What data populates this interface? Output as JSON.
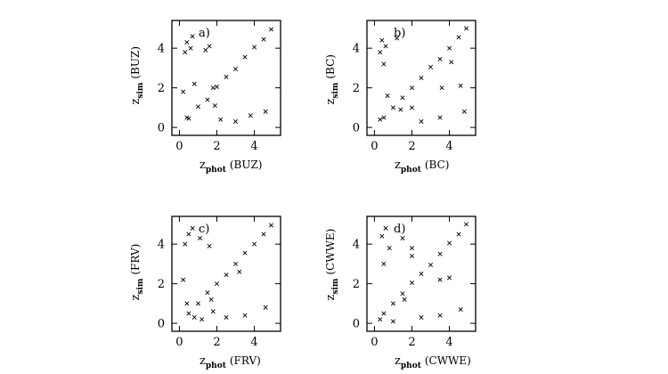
{
  "chart_data": [
    {
      "type": "scatter",
      "panel_label": "a)",
      "xlabel": {
        "main": "z",
        "sub": "phot",
        "code": "(BUZ)"
      },
      "ylabel": {
        "main": "z",
        "sub": "sim",
        "code": "(BUZ)"
      },
      "xlim": [
        -0.4,
        5.4
      ],
      "ylim": [
        -0.4,
        5.4
      ],
      "xticks": [
        0,
        2,
        4
      ],
      "yticks": [
        0,
        2,
        4
      ],
      "marker": "x",
      "series": [
        {
          "values": [
            [
              0.5,
              0.45
            ],
            [
              1.0,
              1.05
            ],
            [
              1.5,
              1.4
            ],
            [
              2.0,
              2.05
            ],
            [
              2.5,
              2.55
            ],
            [
              3.0,
              2.95
            ],
            [
              3.5,
              3.55
            ],
            [
              4.0,
              4.05
            ],
            [
              4.5,
              4.45
            ],
            [
              4.9,
              4.95
            ],
            [
              0.3,
              3.8
            ],
            [
              0.4,
              4.3
            ],
            [
              0.6,
              4.0
            ],
            [
              0.7,
              4.6
            ],
            [
              1.4,
              3.9
            ],
            [
              1.6,
              4.1
            ],
            [
              1.8,
              2.0
            ],
            [
              0.2,
              1.8
            ],
            [
              0.8,
              2.2
            ],
            [
              2.2,
              0.4
            ],
            [
              3.0,
              0.3
            ],
            [
              3.8,
              0.6
            ],
            [
              4.6,
              0.8
            ],
            [
              1.9,
              1.1
            ],
            [
              0.4,
              0.5
            ]
          ]
        }
      ]
    },
    {
      "type": "scatter",
      "panel_label": "b)",
      "xlabel": {
        "main": "z",
        "sub": "phot",
        "code": "(BC)"
      },
      "ylabel": {
        "main": "z",
        "sub": "sim",
        "code": "(BC)"
      },
      "xlim": [
        -0.4,
        5.4
      ],
      "ylim": [
        -0.4,
        5.4
      ],
      "xticks": [
        0,
        2,
        4
      ],
      "yticks": [
        0,
        2,
        4
      ],
      "marker": "x",
      "series": [
        {
          "values": [
            [
              0.5,
              0.5
            ],
            [
              1.0,
              1.0
            ],
            [
              1.5,
              1.5
            ],
            [
              2.0,
              2.0
            ],
            [
              2.5,
              2.5
            ],
            [
              3.0,
              3.05
            ],
            [
              3.5,
              3.45
            ],
            [
              4.0,
              4.0
            ],
            [
              4.5,
              4.55
            ],
            [
              4.9,
              5.0
            ],
            [
              0.3,
              3.8
            ],
            [
              0.4,
              4.4
            ],
            [
              0.6,
              4.1
            ],
            [
              0.5,
              3.2
            ],
            [
              1.2,
              4.5
            ],
            [
              2.0,
              1.0
            ],
            [
              3.6,
              2.0
            ],
            [
              4.6,
              2.1
            ],
            [
              2.5,
              0.3
            ],
            [
              3.5,
              0.5
            ],
            [
              4.8,
              0.8
            ],
            [
              0.3,
              0.4
            ],
            [
              0.7,
              1.6
            ],
            [
              1.4,
              0.9
            ],
            [
              4.1,
              3.3
            ]
          ]
        }
      ]
    },
    {
      "type": "scatter",
      "panel_label": "c)",
      "xlabel": {
        "main": "z",
        "sub": "phot",
        "code": "(FRV)"
      },
      "ylabel": {
        "main": "z",
        "sub": "sim",
        "code": "(FRV)"
      },
      "xlim": [
        -0.4,
        5.4
      ],
      "ylim": [
        -0.4,
        5.4
      ],
      "xticks": [
        0,
        2,
        4
      ],
      "yticks": [
        0,
        2,
        4
      ],
      "marker": "x",
      "series": [
        {
          "values": [
            [
              0.5,
              0.5
            ],
            [
              1.0,
              1.0
            ],
            [
              1.5,
              1.55
            ],
            [
              2.0,
              2.0
            ],
            [
              2.5,
              2.45
            ],
            [
              3.0,
              3.0
            ],
            [
              3.5,
              3.55
            ],
            [
              4.0,
              4.0
            ],
            [
              4.5,
              4.5
            ],
            [
              4.9,
              4.95
            ],
            [
              0.3,
              4.0
            ],
            [
              0.5,
              4.5
            ],
            [
              0.7,
              4.8
            ],
            [
              1.1,
              4.3
            ],
            [
              1.6,
              3.9
            ],
            [
              0.2,
              2.2
            ],
            [
              0.4,
              1.0
            ],
            [
              2.5,
              0.3
            ],
            [
              3.5,
              0.4
            ],
            [
              4.6,
              0.8
            ],
            [
              1.2,
              0.2
            ],
            [
              0.8,
              0.3
            ],
            [
              1.7,
              1.2
            ],
            [
              3.2,
              2.6
            ],
            [
              1.8,
              0.6
            ]
          ]
        }
      ]
    },
    {
      "type": "scatter",
      "panel_label": "d)",
      "xlabel": {
        "main": "z",
        "sub": "phot",
        "code": "(CWWE)"
      },
      "ylabel": {
        "main": "z",
        "sub": "sim",
        "code": "(CWWE)"
      },
      "xlim": [
        -0.4,
        5.4
      ],
      "ylim": [
        -0.4,
        5.4
      ],
      "xticks": [
        0,
        2,
        4
      ],
      "yticks": [
        0,
        2,
        4
      ],
      "marker": "x",
      "series": [
        {
          "values": [
            [
              0.5,
              0.5
            ],
            [
              1.0,
              1.0
            ],
            [
              1.5,
              1.5
            ],
            [
              2.0,
              2.05
            ],
            [
              2.5,
              2.5
            ],
            [
              3.0,
              2.95
            ],
            [
              3.5,
              3.5
            ],
            [
              4.0,
              4.05
            ],
            [
              4.5,
              4.5
            ],
            [
              4.9,
              5.0
            ],
            [
              0.4,
              4.4
            ],
            [
              0.6,
              4.8
            ],
            [
              0.8,
              3.8
            ],
            [
              0.5,
              3.0
            ],
            [
              1.5,
              4.3
            ],
            [
              2.0,
              3.8
            ],
            [
              2.0,
              3.4
            ],
            [
              3.5,
              2.2
            ],
            [
              4.0,
              2.3
            ],
            [
              2.5,
              0.3
            ],
            [
              3.5,
              0.4
            ],
            [
              4.6,
              0.7
            ],
            [
              0.3,
              0.2
            ],
            [
              1.0,
              0.1
            ],
            [
              1.6,
              1.2
            ]
          ]
        }
      ]
    }
  ]
}
